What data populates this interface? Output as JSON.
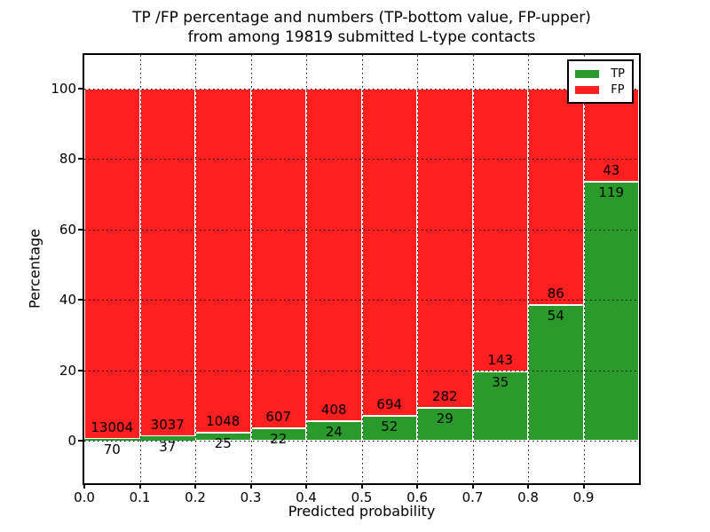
{
  "title": {
    "lines": [
      "TP /FP percentage and numbers (TP-bottom value, FP-upper)",
      "from among 19819 submitted L-type contacts"
    ]
  },
  "y_axis": {
    "label": "Percentage",
    "ticks": [
      "0",
      "20",
      "40",
      "60",
      "80",
      "100"
    ]
  },
  "x_axis": {
    "label": "Predicted probability",
    "ticks": [
      "0.0",
      "0.1",
      "0.2",
      "0.3",
      "0.4",
      "0.5",
      "0.6",
      "0.7",
      "0.8",
      "0.9"
    ]
  },
  "legend": {
    "items": [
      {
        "label": "TP",
        "color": "#2a9b2a"
      },
      {
        "label": "FP",
        "color": "#ff1f1f"
      }
    ]
  },
  "colors": {
    "tp": "#2a9b2a",
    "fp": "#ff1f1f",
    "grid": "#000000",
    "axis": "#000000",
    "background": "#ffffff"
  },
  "chart_data": {
    "type": "bar",
    "stacked": true,
    "normalized": "each bin scaled to 100 percent",
    "title": "TP /FP percentage and numbers (TP-bottom value, FP-upper) from among 19819 submitted L-type contacts",
    "xlabel": "Predicted probability",
    "ylabel": "Percentage",
    "bins": [
      "0.0-0.1",
      "0.1-0.2",
      "0.2-0.3",
      "0.3-0.4",
      "0.4-0.5",
      "0.5-0.6",
      "0.6-0.7",
      "0.7-0.8",
      "0.8-0.9",
      "0.9-1.0"
    ],
    "series": [
      {
        "name": "TP",
        "color": "#2a9b2a",
        "counts": [
          70,
          37,
          25,
          22,
          24,
          52,
          29,
          35,
          54,
          119
        ]
      },
      {
        "name": "FP",
        "color": "#ff1f1f",
        "counts": [
          13004,
          3037,
          1048,
          607,
          408,
          694,
          282,
          143,
          86,
          43
        ]
      }
    ],
    "tp_percent": [
      0.54,
      1.2,
      2.33,
      3.5,
      5.56,
      6.97,
      9.32,
      19.66,
      38.57,
      73.46
    ],
    "total_contacts": 19819,
    "xlim": [
      0.0,
      1.0
    ],
    "ylim": [
      -12,
      110
    ],
    "grid": true,
    "legend_position": "upper right"
  }
}
